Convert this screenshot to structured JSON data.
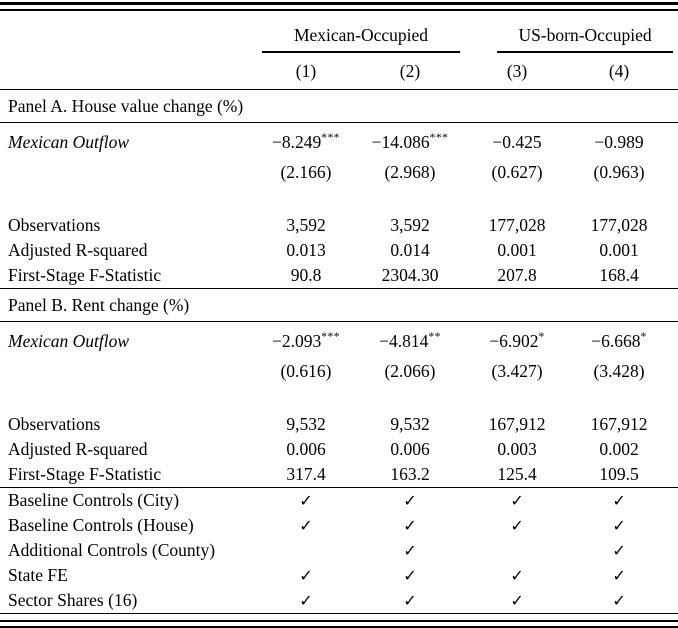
{
  "header": {
    "groups": [
      {
        "label": "Mexican-Occupied"
      },
      {
        "label": "US-born-Occupied"
      }
    ],
    "cols": [
      "(1)",
      "(2)",
      "(3)",
      "(4)"
    ]
  },
  "panel_a": {
    "title": "Panel A. House value change (%)",
    "var_label": "Mexican Outflow",
    "coef": [
      "−8.249",
      "−14.086",
      "−0.425",
      "−0.989"
    ],
    "stars": [
      "***",
      "***",
      "",
      ""
    ],
    "se": [
      "(2.166)",
      "(2.968)",
      "(0.627)",
      "(0.963)"
    ],
    "rows": [
      {
        "label": "Observations",
        "v": [
          "3,592",
          "3,592",
          "177,028",
          "177,028"
        ]
      },
      {
        "label": "Adjusted R-squared",
        "v": [
          "0.013",
          "0.014",
          "0.001",
          "0.001"
        ]
      },
      {
        "label": "First-Stage F-Statistic",
        "v": [
          "90.8",
          "2304.30",
          "207.8",
          "168.4"
        ]
      }
    ]
  },
  "panel_b": {
    "title": "Panel B. Rent change (%)",
    "var_label": "Mexican Outflow",
    "coef": [
      "−2.093",
      "−4.814",
      "−6.902",
      "−6.668"
    ],
    "stars": [
      "***",
      "**",
      "*",
      "*"
    ],
    "se": [
      "(0.616)",
      "(2.066)",
      "(3.427)",
      "(3.428)"
    ],
    "rows": [
      {
        "label": "Observations",
        "v": [
          "9,532",
          "9,532",
          "167,912",
          "167,912"
        ]
      },
      {
        "label": "Adjusted R-squared",
        "v": [
          "0.006",
          "0.006",
          "0.003",
          "0.002"
        ]
      },
      {
        "label": "First-Stage F-Statistic",
        "v": [
          "317.4",
          "163.2",
          "125.4",
          "109.5"
        ]
      }
    ]
  },
  "controls": [
    {
      "label": "Baseline Controls (City)",
      "v": [
        "✓",
        "✓",
        "✓",
        "✓"
      ]
    },
    {
      "label": "Baseline Controls (House)",
      "v": [
        "✓",
        "✓",
        "✓",
        "✓"
      ]
    },
    {
      "label": "Additional Controls (County)",
      "v": [
        "",
        "✓",
        "",
        "✓"
      ]
    },
    {
      "label": "State FE",
      "v": [
        "✓",
        "✓",
        "✓",
        "✓"
      ]
    },
    {
      "label": "Sector Shares (16)",
      "v": [
        "✓",
        "✓",
        "✓",
        "✓"
      ]
    }
  ]
}
